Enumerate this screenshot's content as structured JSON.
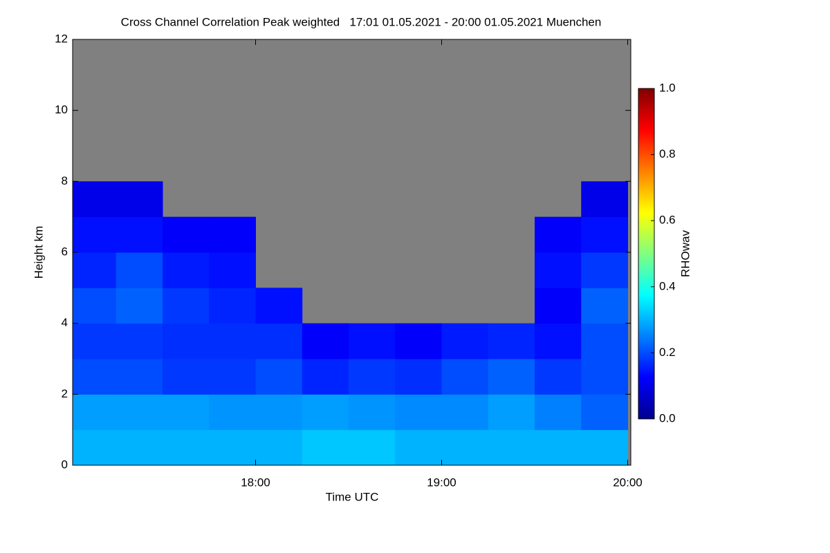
{
  "chart_data": {
    "type": "heatmap",
    "title": "Cross Channel Correlation Peak weighted   17:01 01.05.2021 - 20:00 01.05.2021 Muenchen",
    "xlabel": "Time UTC",
    "ylabel": "Height km",
    "xlim": [
      17.0167,
      20.0167
    ],
    "xticks": [
      {
        "value": 18,
        "label": "18:00"
      },
      {
        "value": 19,
        "label": "19:00"
      },
      {
        "value": 20,
        "label": "20:00"
      }
    ],
    "ylim": [
      0,
      12
    ],
    "yticks": [
      0,
      2,
      4,
      6,
      8,
      10,
      12
    ],
    "xbins": [
      17,
      17.25,
      17.5,
      17.75,
      18,
      18.25,
      18.5,
      18.75,
      19,
      19.25,
      19.5,
      19.75,
      20
    ],
    "ybins": [
      0,
      1,
      2,
      3,
      4,
      5,
      6,
      7,
      8,
      9,
      10,
      11,
      12
    ],
    "values": [
      [
        0.3,
        0.3,
        0.3,
        0.3,
        0.3,
        0.32,
        0.32,
        0.3,
        0.3,
        0.3,
        0.3,
        0.3
      ],
      [
        0.28,
        0.28,
        0.28,
        0.27,
        0.27,
        0.28,
        0.27,
        0.26,
        0.26,
        0.28,
        0.25,
        0.22
      ],
      [
        0.2,
        0.2,
        0.18,
        0.18,
        0.2,
        0.16,
        0.18,
        0.17,
        0.2,
        0.22,
        0.18,
        0.2
      ],
      [
        0.18,
        0.18,
        0.17,
        0.17,
        0.17,
        0.12,
        0.14,
        0.12,
        0.15,
        0.16,
        0.14,
        0.2
      ],
      [
        0.2,
        0.22,
        0.18,
        0.16,
        0.14,
        null,
        null,
        null,
        null,
        null,
        0.12,
        0.22
      ],
      [
        0.16,
        0.2,
        0.15,
        0.14,
        null,
        null,
        null,
        null,
        null,
        null,
        0.14,
        0.18
      ],
      [
        0.14,
        0.14,
        0.12,
        0.12,
        null,
        null,
        null,
        null,
        null,
        null,
        0.12,
        0.14
      ],
      [
        0.1,
        0.1,
        null,
        null,
        null,
        null,
        null,
        null,
        null,
        null,
        null,
        0.1
      ],
      [
        null,
        null,
        null,
        null,
        null,
        null,
        null,
        null,
        null,
        null,
        null,
        null
      ],
      [
        null,
        null,
        null,
        null,
        null,
        null,
        null,
        null,
        null,
        null,
        null,
        null
      ],
      [
        null,
        null,
        null,
        null,
        null,
        null,
        null,
        null,
        null,
        null,
        null,
        null
      ],
      [
        null,
        null,
        null,
        null,
        null,
        null,
        null,
        null,
        null,
        null,
        null,
        null
      ]
    ],
    "missing_color": "#808080",
    "colormap": [
      "#00008f",
      "#0000ff",
      "#0080ff",
      "#00ffff",
      "#80ff80",
      "#ffff00",
      "#ff8000",
      "#ff0000",
      "#800000"
    ],
    "colorbar": {
      "label": "RHOwav",
      "lim": [
        0,
        1
      ],
      "ticks": [
        {
          "value": 0,
          "label": "0.0"
        },
        {
          "value": 0.2,
          "label": "0.2"
        },
        {
          "value": 0.4,
          "label": "0.4"
        },
        {
          "value": 0.6,
          "label": "0.6"
        },
        {
          "value": 0.8,
          "label": "0.8"
        },
        {
          "value": 1,
          "label": "1.0"
        }
      ]
    }
  }
}
